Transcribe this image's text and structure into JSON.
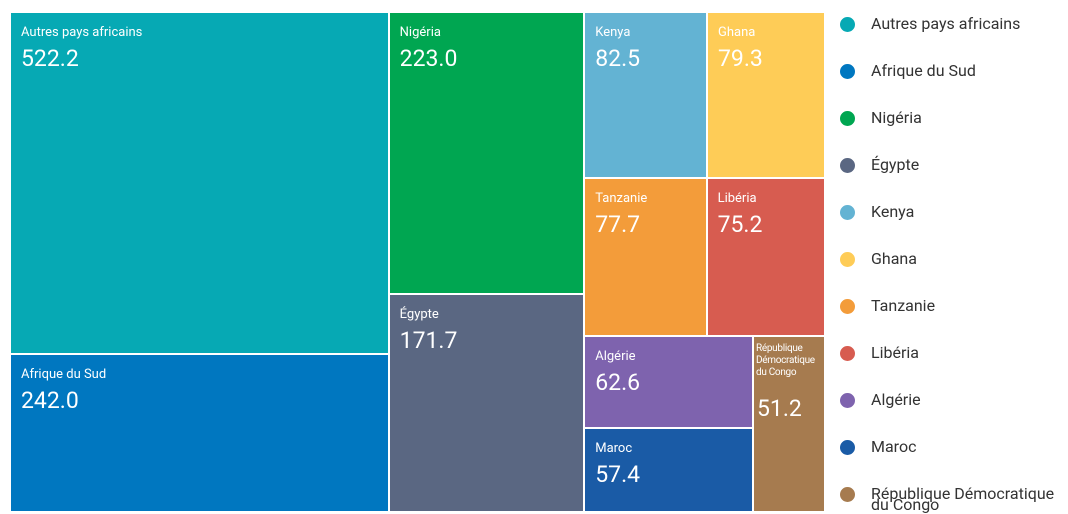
{
  "chart_data": {
    "type": "treemap",
    "categories": [
      "Autres pays africains",
      "Afrique du Sud",
      "Nigéria",
      "Égypte",
      "Kenya",
      "Ghana",
      "Tanzanie",
      "Libéria",
      "Algérie",
      "Maroc",
      "République Démocratique du Congo"
    ],
    "values": [
      522.2,
      242.0,
      223.0,
      171.7,
      82.5,
      79.3,
      77.7,
      75.2,
      62.6,
      57.4,
      51.2
    ],
    "value_labels": [
      "522.2",
      "242.0",
      "223.0",
      "171.7",
      "82.5",
      "79.3",
      "77.7",
      "75.2",
      "62.6",
      "57.4",
      "51.2"
    ],
    "colors": [
      "#06a9b4",
      "#0077c0",
      "#00a651",
      "#5a6782",
      "#63b3d3",
      "#fecc57",
      "#f39c3a",
      "#d75c50",
      "#7e63ae",
      "#1a5ba6",
      "#a67b4f"
    ],
    "legend": "right"
  }
}
